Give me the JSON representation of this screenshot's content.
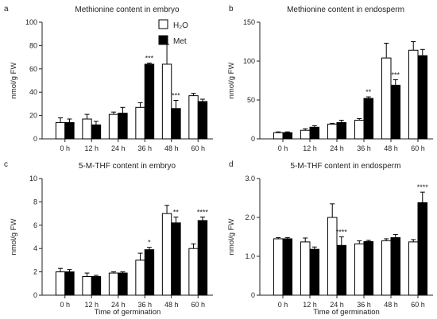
{
  "chart_data": [
    {
      "type": "bar",
      "letter": "a",
      "title": "Methionine content in embryo",
      "xlabel": "",
      "ylabel": "nmol/g FW",
      "ylim": [
        0,
        100
      ],
      "yticks": [
        0,
        20,
        40,
        60,
        80,
        100
      ],
      "categories": [
        "0 h",
        "12 h",
        "24 h",
        "36 h",
        "48 h",
        "60 h"
      ],
      "series": [
        {
          "name": "H₂O",
          "values": [
            14,
            17,
            21,
            27,
            64,
            37
          ],
          "errors": [
            4,
            4,
            2,
            4,
            17,
            2
          ]
        },
        {
          "name": "Met",
          "values": [
            14,
            12,
            22,
            64,
            26,
            32
          ],
          "errors": [
            3,
            3,
            5,
            1,
            7,
            2
          ]
        }
      ],
      "annotations": [
        {
          "category": 3,
          "series": 1,
          "text": "***"
        },
        {
          "category": 4,
          "series": 1,
          "text": "***"
        }
      ],
      "legend": {
        "position": "top-right",
        "labels": [
          "H₂O",
          "Met"
        ]
      }
    },
    {
      "type": "bar",
      "letter": "b",
      "title": "Methionine content in endosperm",
      "xlabel": "",
      "ylabel": "nmol/g FW",
      "ylim": [
        0,
        150
      ],
      "yticks": [
        0,
        50,
        100,
        150
      ],
      "categories": [
        "0 h",
        "12 h",
        "24 h",
        "36 h",
        "48 h",
        "60 h"
      ],
      "series": [
        {
          "name": "H₂O",
          "values": [
            8,
            11,
            19,
            24,
            104,
            114
          ],
          "errors": [
            1,
            2,
            1,
            2,
            19,
            11
          ]
        },
        {
          "name": "Met",
          "values": [
            8,
            15,
            21,
            52,
            69,
            107
          ],
          "errors": [
            1,
            2,
            3,
            2,
            7,
            8
          ]
        }
      ],
      "annotations": [
        {
          "category": 3,
          "series": 1,
          "text": "**"
        },
        {
          "category": 4,
          "series": 1,
          "text": "***"
        }
      ]
    },
    {
      "type": "bar",
      "letter": "c",
      "title": "5-M-THF content in embryo",
      "xlabel": "Time of germination",
      "ylabel": "nmol/g FW",
      "ylim": [
        0,
        10
      ],
      "yticks": [
        0,
        2,
        4,
        6,
        8,
        10
      ],
      "categories": [
        "0 h",
        "12 h",
        "24 h",
        "36 h",
        "48 h",
        "60 h"
      ],
      "series": [
        {
          "name": "H₂O",
          "values": [
            2.0,
            1.6,
            1.9,
            3.0,
            7.0,
            4.0
          ],
          "errors": [
            0.3,
            0.3,
            0.1,
            0.6,
            0.7,
            0.4
          ]
        },
        {
          "name": "Met",
          "values": [
            2.0,
            1.6,
            1.9,
            3.9,
            6.2,
            6.4
          ],
          "errors": [
            0.2,
            0.1,
            0.1,
            0.2,
            0.5,
            0.3
          ]
        }
      ],
      "annotations": [
        {
          "category": 3,
          "series": 1,
          "text": "*"
        },
        {
          "category": 4,
          "series": 1,
          "text": "**"
        },
        {
          "category": 5,
          "series": 1,
          "text": "****"
        }
      ]
    },
    {
      "type": "bar",
      "letter": "d",
      "title": "5-M-THF content in endosperm",
      "xlabel": "Time of germination",
      "ylabel": "nmol/g FW",
      "ylim": [
        0,
        3.0
      ],
      "yticks": [
        0,
        1.0,
        2.0,
        3.0
      ],
      "ytick_labels": [
        "0",
        "1.0",
        "2.0",
        "3.0"
      ],
      "categories": [
        "0 h",
        "12 h",
        "24 h",
        "36 h",
        "48 h",
        "60 h"
      ],
      "series": [
        {
          "name": "H₂O",
          "values": [
            1.45,
            1.37,
            2.0,
            1.32,
            1.4,
            1.37
          ],
          "errors": [
            0.03,
            0.1,
            0.35,
            0.08,
            0.05,
            0.06
          ]
        },
        {
          "name": "Met",
          "values": [
            1.45,
            1.18,
            1.28,
            1.38,
            1.48,
            2.38
          ],
          "errors": [
            0.03,
            0.06,
            0.22,
            0.03,
            0.08,
            0.27
          ]
        }
      ],
      "annotations": [
        {
          "category": 2,
          "series": 1,
          "text": "****"
        },
        {
          "category": 5,
          "series": 1,
          "text": "****"
        }
      ]
    }
  ]
}
